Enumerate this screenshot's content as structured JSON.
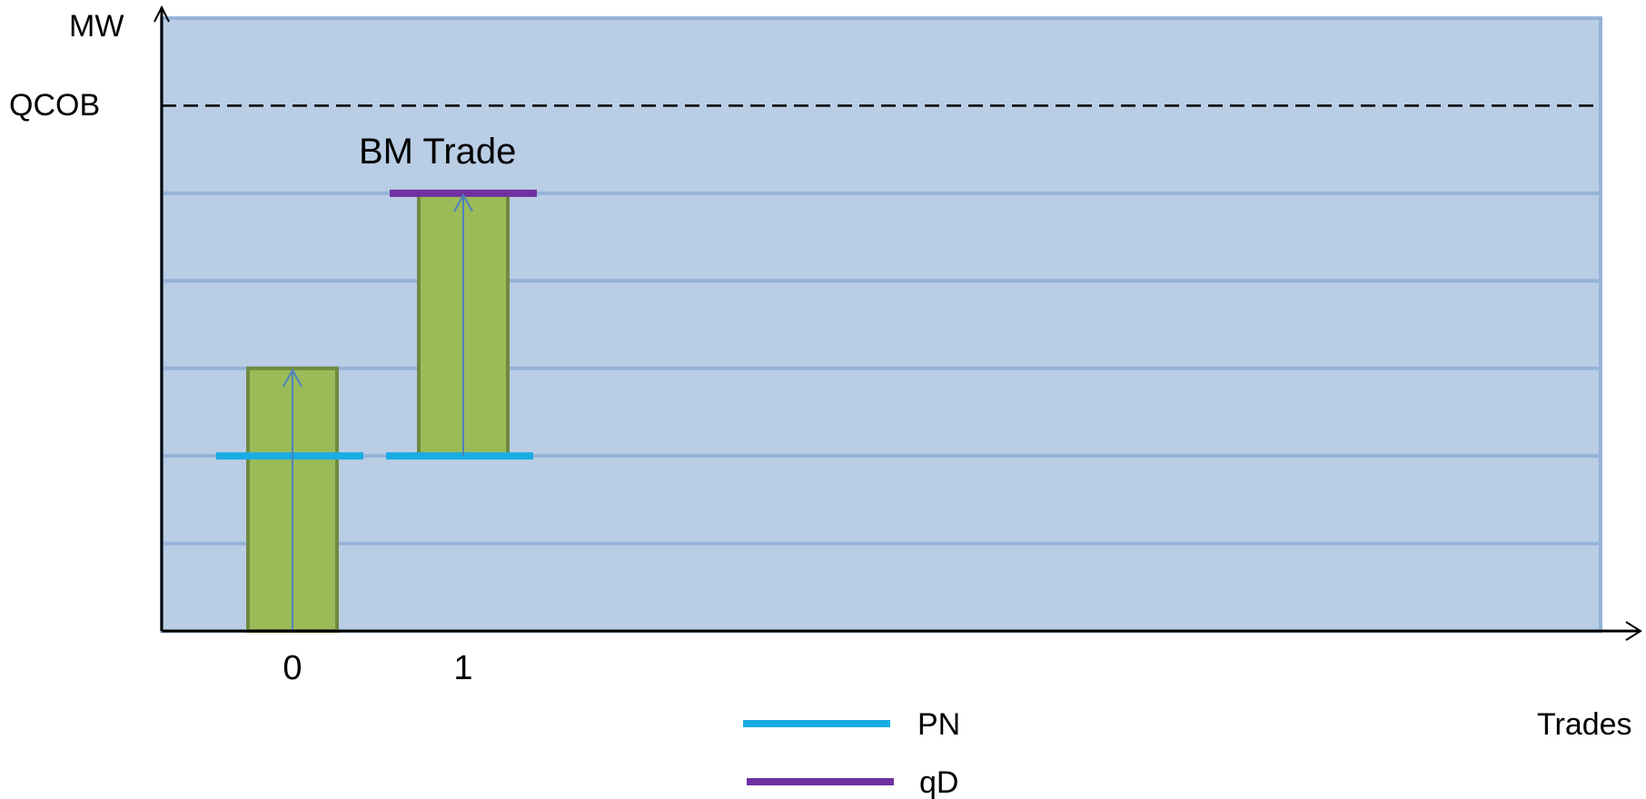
{
  "axes": {
    "y_label": "MW",
    "x_label": "Trades",
    "qcob_label": "QCOB"
  },
  "annotation": {
    "bm_trade": "BM Trade"
  },
  "ticks": [
    "0",
    "1"
  ],
  "legend": [
    {
      "label": "PN",
      "color": "#1AADE3"
    },
    {
      "label": "qD",
      "color": "#7030A0"
    }
  ],
  "colors": {
    "plot_bg": "#B9CDE5",
    "grid": "#95B3D7",
    "bar_fill": "#9BBB59",
    "bar_stroke": "#71893F",
    "arrow": "#4F81BD",
    "axis": "#000000"
  },
  "chart_data": {
    "type": "bar",
    "categories": [
      "0",
      "1"
    ],
    "bars": [
      {
        "category": "0",
        "from": 0,
        "to": 3
      },
      {
        "category": "1",
        "from": 2,
        "to": 5
      }
    ],
    "pn_levels": [
      2,
      2
    ],
    "qd_levels": [
      null,
      5
    ],
    "qcob_level": 6,
    "gridlines": [
      1,
      2,
      3,
      4,
      5
    ],
    "ylim": [
      0,
      7
    ]
  }
}
